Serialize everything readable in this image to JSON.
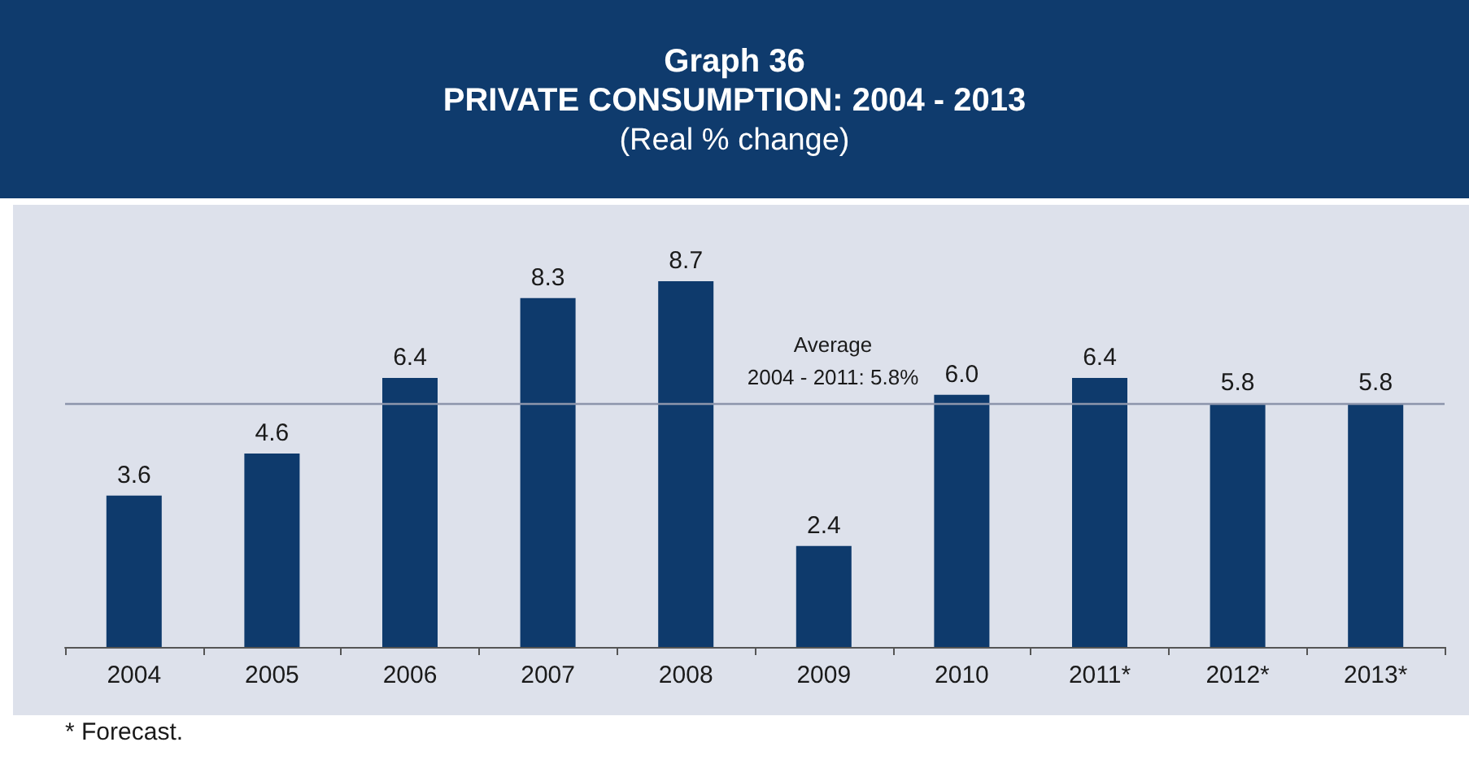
{
  "chart_data": {
    "type": "bar",
    "title": "Graph 36\nPRIVATE CONSUMPTION: 2004 - 2013",
    "subtitle": "(Real % change)",
    "categories": [
      "2004",
      "2005",
      "2006",
      "2007",
      "2008",
      "2009",
      "2010",
      "2011*",
      "2012*",
      "2013*"
    ],
    "values": [
      3.6,
      4.6,
      6.4,
      8.3,
      8.7,
      2.4,
      6.0,
      6.4,
      5.8,
      5.8
    ],
    "value_labels": [
      "3.6",
      "4.6",
      "6.4",
      "8.3",
      "8.7",
      "2.4",
      "6.0",
      "6.4",
      "5.8",
      "5.8"
    ],
    "color": "#0e3a6c",
    "ref_lines": [
      {
        "axis": "y",
        "value": 5.8,
        "label": "Average\n2004 - 2011: 5.8%",
        "color": "#8c95ab"
      }
    ],
    "annotations": [
      "* Forecast."
    ]
  }
}
